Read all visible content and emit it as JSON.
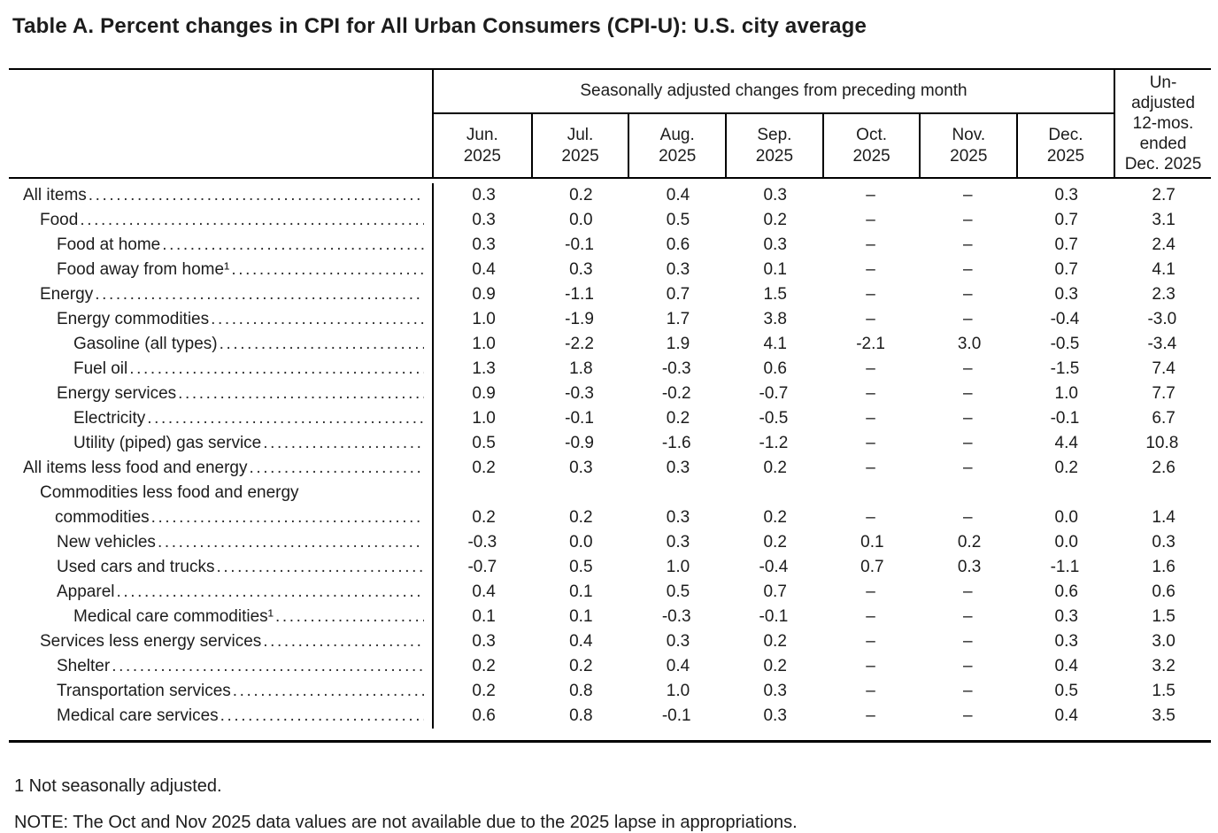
{
  "title": "Table A. Percent changes in CPI for All Urban Consumers (CPI-U): U.S. city average",
  "table": {
    "spanner_label": "Seasonally adjusted changes from preceding month",
    "columns": [
      {
        "label": "Jun.\n2025"
      },
      {
        "label": "Jul.\n2025"
      },
      {
        "label": "Aug.\n2025"
      },
      {
        "label": "Sep.\n2025"
      },
      {
        "label": "Oct.\n2025"
      },
      {
        "label": "Nov.\n2025"
      },
      {
        "label": "Dec.\n2025"
      }
    ],
    "last_column_label": "Un-\nadjusted\n12-mos.\nended\nDec. 2025",
    "missing_value_symbol": "–",
    "rows": [
      {
        "label": "All items",
        "indent": 0,
        "values": [
          "0.3",
          "0.2",
          "0.4",
          "0.3",
          "–",
          "–",
          "0.3",
          "2.7"
        ]
      },
      {
        "label": "Food",
        "indent": 1,
        "values": [
          "0.3",
          "0.0",
          "0.5",
          "0.2",
          "–",
          "–",
          "0.7",
          "3.1"
        ]
      },
      {
        "label": "Food at home",
        "indent": 2,
        "values": [
          "0.3",
          "-0.1",
          "0.6",
          "0.3",
          "–",
          "–",
          "0.7",
          "2.4"
        ]
      },
      {
        "label": "Food away from home¹",
        "indent": 2,
        "values": [
          "0.4",
          "0.3",
          "0.3",
          "0.1",
          "–",
          "–",
          "0.7",
          "4.1"
        ]
      },
      {
        "label": "Energy",
        "indent": 1,
        "values": [
          "0.9",
          "-1.1",
          "0.7",
          "1.5",
          "–",
          "–",
          "0.3",
          "2.3"
        ]
      },
      {
        "label": "Energy commodities",
        "indent": 2,
        "values": [
          "1.0",
          "-1.9",
          "1.7",
          "3.8",
          "–",
          "–",
          "-0.4",
          "-3.0"
        ]
      },
      {
        "label": "Gasoline (all types)",
        "indent": 3,
        "values": [
          "1.0",
          "-2.2",
          "1.9",
          "4.1",
          "-2.1",
          "3.0",
          "-0.5",
          "-3.4"
        ]
      },
      {
        "label": "Fuel oil",
        "indent": 3,
        "values": [
          "1.3",
          "1.8",
          "-0.3",
          "0.6",
          "–",
          "–",
          "-1.5",
          "7.4"
        ]
      },
      {
        "label": "Energy services",
        "indent": 2,
        "values": [
          "0.9",
          "-0.3",
          "-0.2",
          "-0.7",
          "–",
          "–",
          "1.0",
          "7.7"
        ]
      },
      {
        "label": "Electricity",
        "indent": 3,
        "values": [
          "1.0",
          "-0.1",
          "0.2",
          "-0.5",
          "–",
          "–",
          "-0.1",
          "6.7"
        ]
      },
      {
        "label": "Utility (piped) gas service",
        "indent": 3,
        "values": [
          "0.5",
          "-0.9",
          "-1.6",
          "-1.2",
          "–",
          "–",
          "4.4",
          "10.8"
        ]
      },
      {
        "label": "All items less food and energy",
        "indent": 0,
        "values": [
          "0.2",
          "0.3",
          "0.3",
          "0.2",
          "–",
          "–",
          "0.2",
          "2.6"
        ]
      },
      {
        "label": "Commodities less food and energy",
        "label2": "commodities",
        "indent": 1,
        "values": [
          "0.2",
          "0.2",
          "0.3",
          "0.2",
          "–",
          "–",
          "0.0",
          "1.4"
        ]
      },
      {
        "label": "New vehicles",
        "indent": 2,
        "values": [
          "-0.3",
          "0.0",
          "0.3",
          "0.2",
          "0.1",
          "0.2",
          "0.0",
          "0.3"
        ]
      },
      {
        "label": "Used cars and trucks",
        "indent": 2,
        "values": [
          "-0.7",
          "0.5",
          "1.0",
          "-0.4",
          "0.7",
          "0.3",
          "-1.1",
          "1.6"
        ]
      },
      {
        "label": "Apparel",
        "indent": 2,
        "values": [
          "0.4",
          "0.1",
          "0.5",
          "0.7",
          "–",
          "–",
          "0.6",
          "0.6"
        ]
      },
      {
        "label": "Medical care commodities¹",
        "indent": 3,
        "values": [
          "0.1",
          "0.1",
          "-0.3",
          "-0.1",
          "–",
          "–",
          "0.3",
          "1.5"
        ]
      },
      {
        "label": "Services less energy services",
        "indent": 1,
        "values": [
          "0.3",
          "0.4",
          "0.3",
          "0.2",
          "–",
          "–",
          "0.3",
          "3.0"
        ]
      },
      {
        "label": "Shelter",
        "indent": 2,
        "values": [
          "0.2",
          "0.2",
          "0.4",
          "0.2",
          "–",
          "–",
          "0.4",
          "3.2"
        ]
      },
      {
        "label": "Transportation services",
        "indent": 2,
        "values": [
          "0.2",
          "0.8",
          "1.0",
          "0.3",
          "–",
          "–",
          "0.5",
          "1.5"
        ]
      },
      {
        "label": "Medical care services",
        "indent": 2,
        "values": [
          "0.6",
          "0.8",
          "-0.1",
          "0.3",
          "–",
          "–",
          "0.4",
          "3.5"
        ]
      }
    ]
  },
  "footnote": "1 Not seasonally adjusted.",
  "note": "NOTE: The Oct and Nov 2025 data values are not available due to the 2025 lapse in appropriations."
}
